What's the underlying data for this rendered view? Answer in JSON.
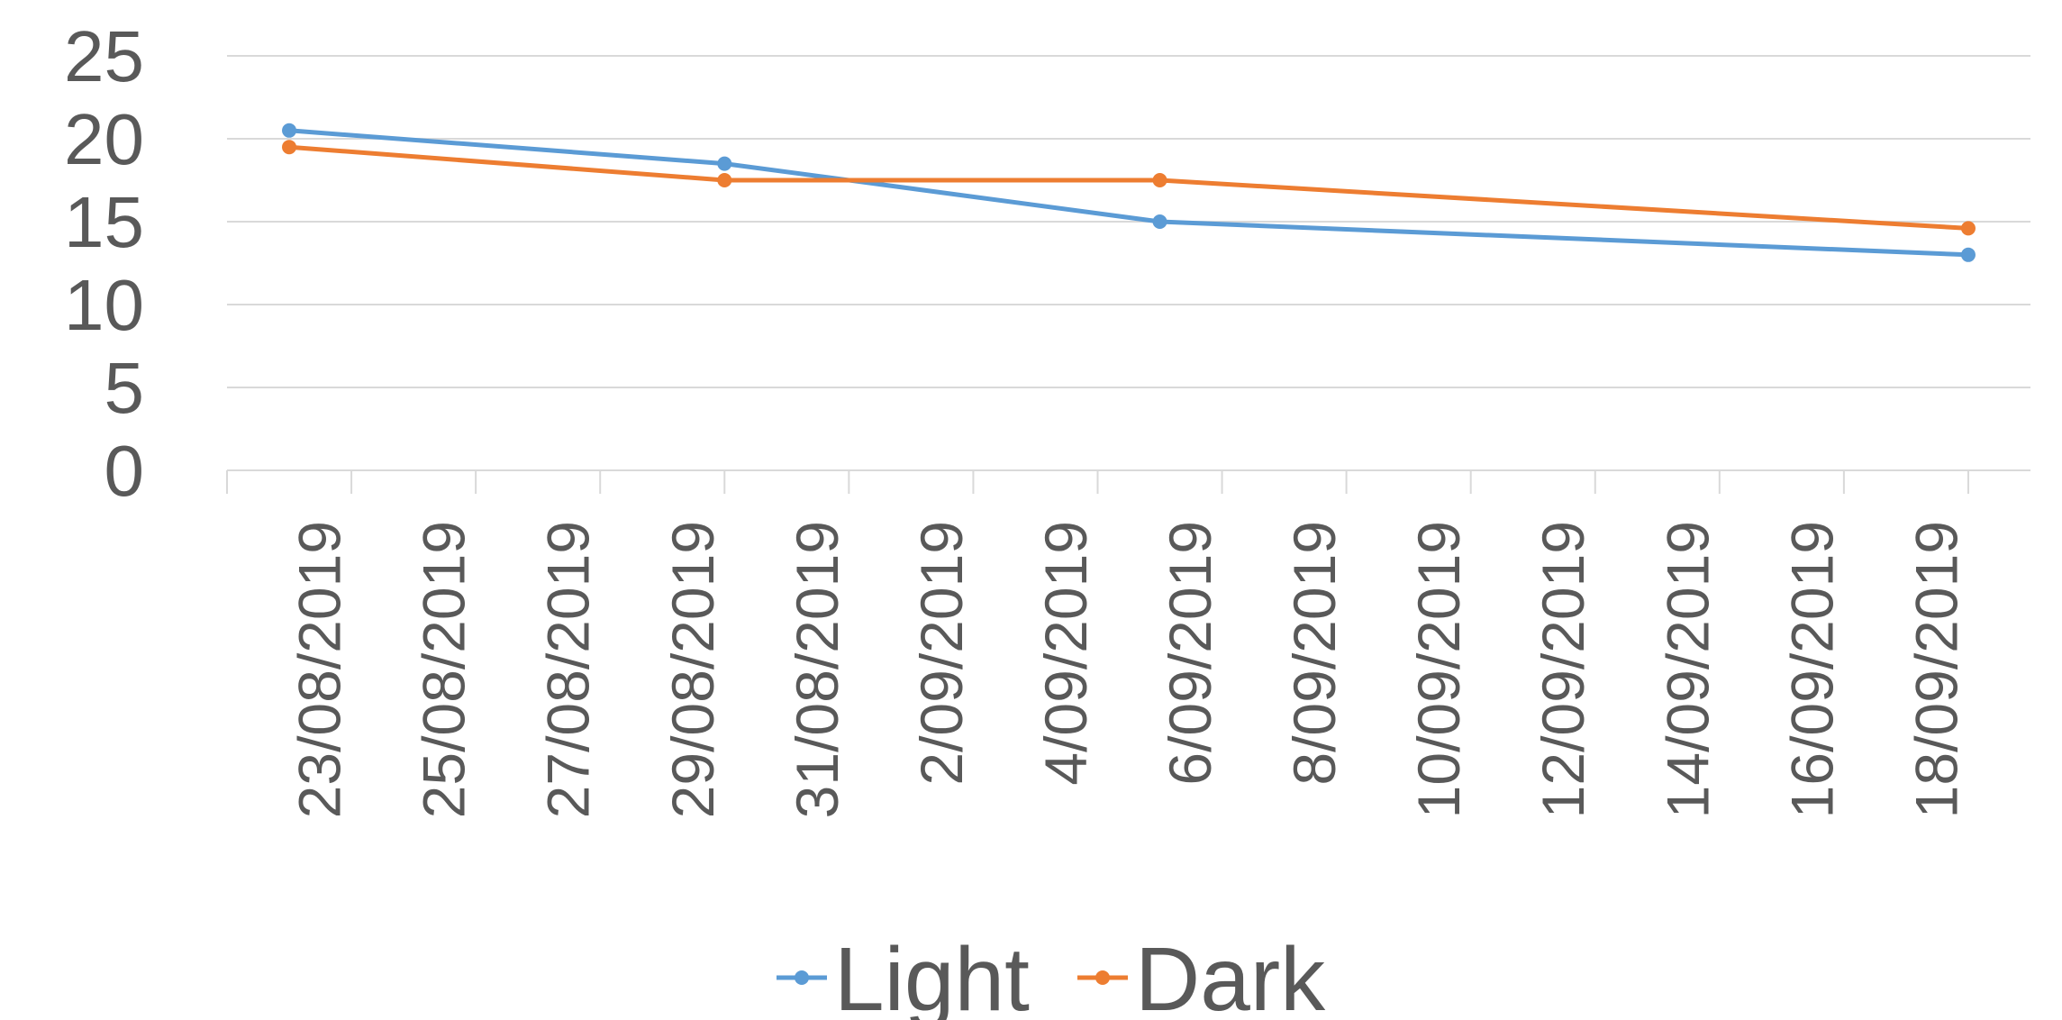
{
  "chart_data": {
    "type": "line",
    "title": "",
    "xlabel": "",
    "ylabel": "",
    "ylim": [
      0,
      25
    ],
    "yticks": [
      "0",
      "5",
      "10",
      "15",
      "20",
      "25"
    ],
    "xlim": [
      "2019-08-22",
      "2019-09-20"
    ],
    "xtick_labels": [
      "23/08/2019",
      "25/08/2019",
      "27/08/2019",
      "29/08/2019",
      "31/08/2019",
      "2/09/2019",
      "4/09/2019",
      "6/09/2019",
      "8/09/2019",
      "10/09/2019",
      "12/09/2019",
      "14/09/2019",
      "16/09/2019",
      "18/09/2019"
    ],
    "xtick_dates": [
      "2019-08-23",
      "2019-08-25",
      "2019-08-27",
      "2019-08-29",
      "2019-08-31",
      "2019-09-02",
      "2019-09-04",
      "2019-09-06",
      "2019-09-08",
      "2019-09-10",
      "2019-09-12",
      "2019-09-14",
      "2019-09-16",
      "2019-09-18"
    ],
    "grid": true,
    "legend_position": "bottom",
    "series": [
      {
        "name": "Light",
        "color": "#5b9bd5",
        "points": [
          {
            "x": "2019-08-23",
            "y": 20.5
          },
          {
            "x": "2019-08-30",
            "y": 18.5
          },
          {
            "x": "2019-09-06",
            "y": 15.0
          },
          {
            "x": "2019-09-19",
            "y": 13.0
          }
        ]
      },
      {
        "name": "Dark",
        "color": "#ed7d31",
        "points": [
          {
            "x": "2019-08-23",
            "y": 19.5
          },
          {
            "x": "2019-08-30",
            "y": 17.5
          },
          {
            "x": "2019-09-06",
            "y": 17.5
          },
          {
            "x": "2019-09-19",
            "y": 14.6
          }
        ]
      }
    ]
  }
}
